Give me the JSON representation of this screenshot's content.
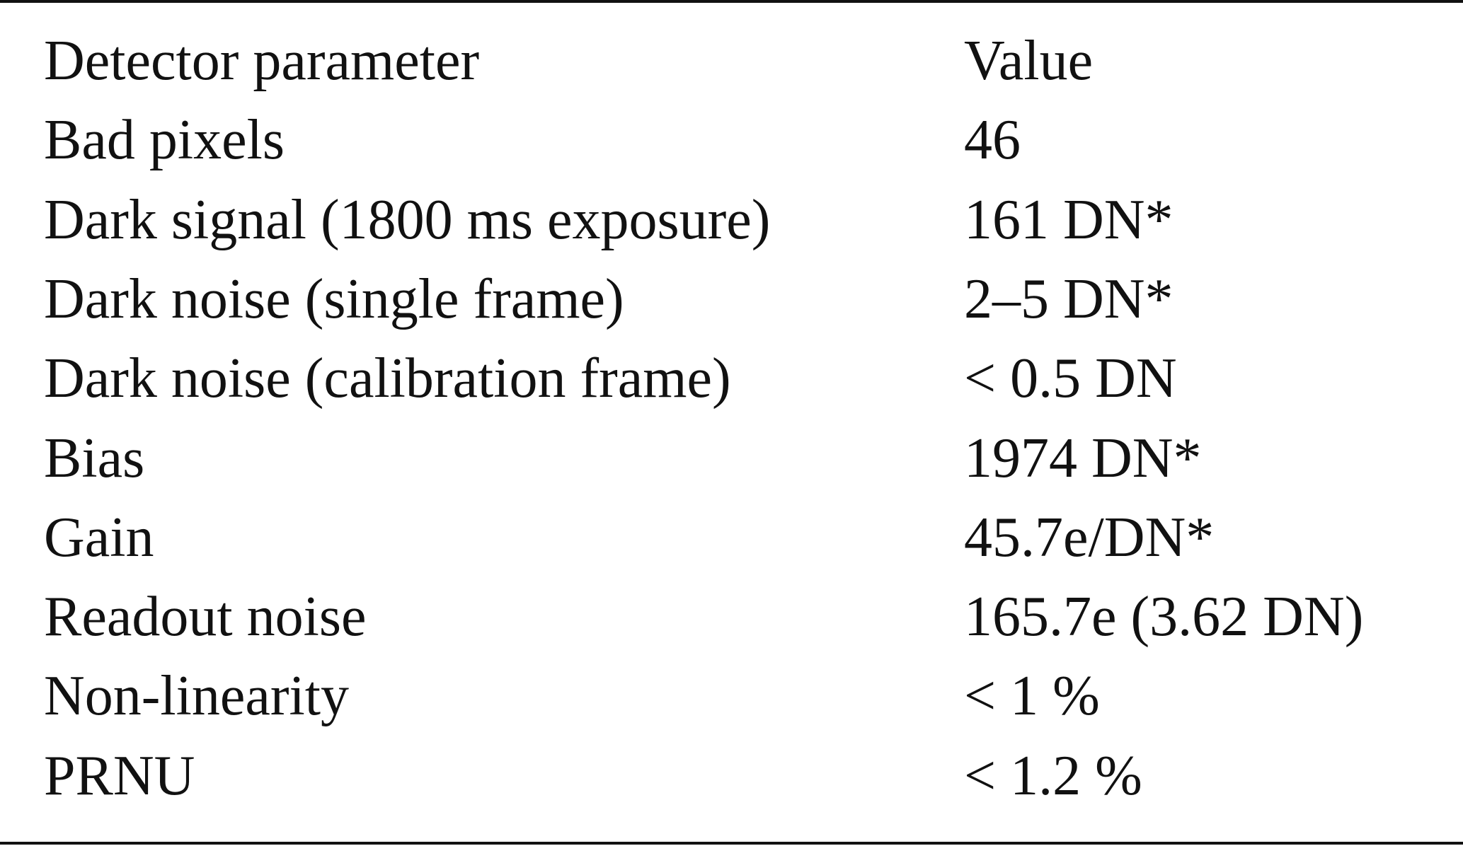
{
  "table": {
    "header": [
      "Detector parameter",
      "Value"
    ],
    "rows": [
      [
        "Bad pixels",
        "46"
      ],
      [
        "Dark signal (1800 ms exposure)",
        "161 DN*"
      ],
      [
        "Dark noise (single frame)",
        "2–5 DN*"
      ],
      [
        "Dark noise (calibration frame)",
        "< 0.5 DN"
      ],
      [
        "Bias",
        "1974 DN*"
      ],
      [
        "Gain",
        "45.7e/DN*"
      ],
      [
        "Readout noise",
        "165.7e (3.62 DN)"
      ],
      [
        "Non-linearity",
        "< 1 %"
      ],
      [
        "PRNU",
        "< 1.2 %"
      ]
    ]
  }
}
